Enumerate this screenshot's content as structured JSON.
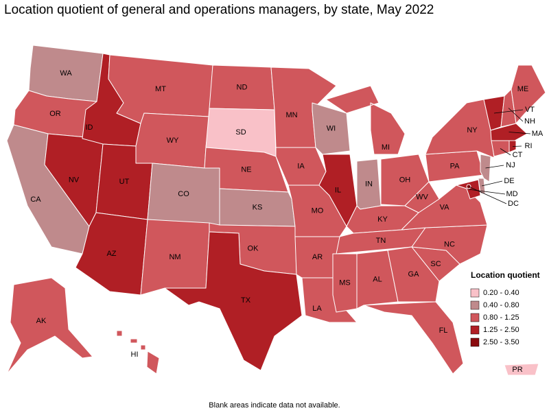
{
  "title": "Location quotient of general and operations managers, by state, May 2022",
  "legend": {
    "title": "Location quotient",
    "items": [
      {
        "label": "0.20 - 0.40",
        "color": "#f9c1c8"
      },
      {
        "label": "0.40 - 0.80",
        "color": "#bf8a8c"
      },
      {
        "label": "0.80 - 1.25",
        "color": "#d0575c"
      },
      {
        "label": "1.25 - 2.50",
        "color": "#b01f25"
      },
      {
        "label": "2.50 - 3.50",
        "color": "#8a0a0e"
      }
    ]
  },
  "states": [
    {
      "abbr": "WA",
      "range": "0.40 - 0.80"
    },
    {
      "abbr": "OR",
      "range": "0.80 - 1.25"
    },
    {
      "abbr": "CA",
      "range": "0.40 - 0.80"
    },
    {
      "abbr": "NV",
      "range": "1.25 - 2.50"
    },
    {
      "abbr": "ID",
      "range": "1.25 - 2.50"
    },
    {
      "abbr": "MT",
      "range": "0.80 - 1.25"
    },
    {
      "abbr": "WY",
      "range": "0.80 - 1.25"
    },
    {
      "abbr": "UT",
      "range": "1.25 - 2.50"
    },
    {
      "abbr": "AZ",
      "range": "1.25 - 2.50"
    },
    {
      "abbr": "CO",
      "range": "0.40 - 0.80"
    },
    {
      "abbr": "NM",
      "range": "0.80 - 1.25"
    },
    {
      "abbr": "ND",
      "range": "0.80 - 1.25"
    },
    {
      "abbr": "SD",
      "range": "0.20 - 0.40"
    },
    {
      "abbr": "NE",
      "range": "0.80 - 1.25"
    },
    {
      "abbr": "KS",
      "range": "0.40 - 0.80"
    },
    {
      "abbr": "OK",
      "range": "0.80 - 1.25"
    },
    {
      "abbr": "TX",
      "range": "1.25 - 2.50"
    },
    {
      "abbr": "MN",
      "range": "0.80 - 1.25"
    },
    {
      "abbr": "IA",
      "range": "0.80 - 1.25"
    },
    {
      "abbr": "MO",
      "range": "0.80 - 1.25"
    },
    {
      "abbr": "AR",
      "range": "0.80 - 1.25"
    },
    {
      "abbr": "LA",
      "range": "0.80 - 1.25"
    },
    {
      "abbr": "WI",
      "range": "0.40 - 0.80"
    },
    {
      "abbr": "IL",
      "range": "1.25 - 2.50"
    },
    {
      "abbr": "MI",
      "range": "0.80 - 1.25"
    },
    {
      "abbr": "IN",
      "range": "0.40 - 0.80"
    },
    {
      "abbr": "OH",
      "range": "0.80 - 1.25"
    },
    {
      "abbr": "KY",
      "range": "0.80 - 1.25"
    },
    {
      "abbr": "TN",
      "range": "0.80 - 1.25"
    },
    {
      "abbr": "MS",
      "range": "0.80 - 1.25"
    },
    {
      "abbr": "AL",
      "range": "0.80 - 1.25"
    },
    {
      "abbr": "GA",
      "range": "0.80 - 1.25"
    },
    {
      "abbr": "FL",
      "range": "0.80 - 1.25"
    },
    {
      "abbr": "SC",
      "range": "0.80 - 1.25"
    },
    {
      "abbr": "NC",
      "range": "0.80 - 1.25"
    },
    {
      "abbr": "VA",
      "range": "0.80 - 1.25"
    },
    {
      "abbr": "WV",
      "range": "0.80 - 1.25"
    },
    {
      "abbr": "PA",
      "range": "0.80 - 1.25"
    },
    {
      "abbr": "NY",
      "range": "0.80 - 1.25"
    },
    {
      "abbr": "VT",
      "range": "1.25 - 2.50"
    },
    {
      "abbr": "NH",
      "range": "0.80 - 1.25"
    },
    {
      "abbr": "ME",
      "range": "0.80 - 1.25"
    },
    {
      "abbr": "MA",
      "range": "1.25 - 2.50"
    },
    {
      "abbr": "RI",
      "range": "1.25 - 2.50"
    },
    {
      "abbr": "CT",
      "range": "0.80 - 1.25"
    },
    {
      "abbr": "NJ",
      "range": "0.40 - 0.80"
    },
    {
      "abbr": "DE",
      "range": "0.40 - 0.80"
    },
    {
      "abbr": "MD",
      "range": "1.25 - 2.50"
    },
    {
      "abbr": "DC",
      "range": "2.50 - 3.50"
    },
    {
      "abbr": "AK",
      "range": "0.80 - 1.25"
    },
    {
      "abbr": "HI",
      "range": "0.80 - 1.25"
    },
    {
      "abbr": "PR",
      "range": "0.20 - 0.40"
    }
  ],
  "footnote": "Blank areas indicate data not available."
}
